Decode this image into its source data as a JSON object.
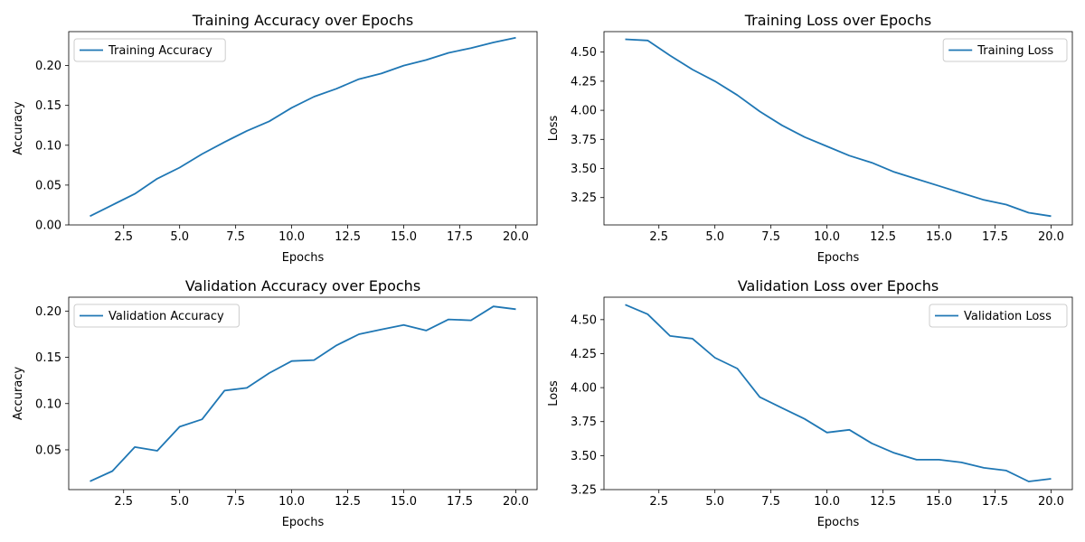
{
  "chart_data": [
    {
      "type": "line",
      "title": "Training Accuracy over Epochs",
      "xlabel": "Epochs",
      "ylabel": "Accuracy",
      "xlim": [
        0.05,
        20.95
      ],
      "ylim": [
        0,
        0.2426
      ],
      "xticks": [
        2.5,
        5.0,
        7.5,
        10.0,
        12.5,
        15.0,
        17.5,
        20.0
      ],
      "yticks": [
        0.0,
        0.05,
        0.1,
        0.15,
        0.2
      ],
      "ytick_decimals": 2,
      "legend_loc": "upper left",
      "line_color": "#1f77b4",
      "grid": false,
      "series": [
        {
          "name": "Training Accuracy",
          "x": [
            1,
            2,
            3,
            4,
            5,
            6,
            7,
            8,
            9,
            10,
            11,
            12,
            13,
            14,
            15,
            16,
            17,
            18,
            19,
            20
          ],
          "y": [
            0.011,
            0.025,
            0.039,
            0.058,
            0.072,
            0.089,
            0.104,
            0.118,
            0.13,
            0.147,
            0.161,
            0.171,
            0.183,
            0.19,
            0.2,
            0.207,
            0.216,
            0.222,
            0.229,
            0.235
          ]
        }
      ]
    },
    {
      "type": "line",
      "title": "Training Loss over Epochs",
      "xlabel": "Epochs",
      "ylabel": "Loss",
      "xlim": [
        0.05,
        20.95
      ],
      "ylim": [
        3.015,
        4.676
      ],
      "xticks": [
        2.5,
        5.0,
        7.5,
        10.0,
        12.5,
        15.0,
        17.5,
        20.0
      ],
      "yticks": [
        3.25,
        3.5,
        3.75,
        4.0,
        4.25,
        4.5
      ],
      "ytick_decimals": 2,
      "legend_loc": "upper right",
      "line_color": "#1f77b4",
      "grid": false,
      "series": [
        {
          "name": "Training Loss",
          "x": [
            1,
            2,
            3,
            4,
            5,
            6,
            7,
            8,
            9,
            10,
            11,
            12,
            13,
            14,
            15,
            16,
            17,
            18,
            19,
            20
          ],
          "y": [
            4.61,
            4.6,
            4.47,
            4.35,
            4.25,
            4.13,
            3.99,
            3.87,
            3.77,
            3.69,
            3.61,
            3.55,
            3.47,
            3.41,
            3.35,
            3.29,
            3.23,
            3.19,
            3.12,
            3.09
          ]
        }
      ]
    },
    {
      "type": "line",
      "title": "Validation Accuracy over Epochs",
      "xlabel": "Epochs",
      "ylabel": "Accuracy",
      "xlim": [
        0.05,
        20.95
      ],
      "ylim": [
        0.007,
        0.215
      ],
      "xticks": [
        2.5,
        5.0,
        7.5,
        10.0,
        12.5,
        15.0,
        17.5,
        20.0
      ],
      "yticks": [
        0.05,
        0.1,
        0.15,
        0.2
      ],
      "ytick_decimals": 2,
      "legend_loc": "upper left",
      "line_color": "#1f77b4",
      "grid": false,
      "series": [
        {
          "name": "Validation Accuracy",
          "x": [
            1,
            2,
            3,
            4,
            5,
            6,
            7,
            8,
            9,
            10,
            11,
            12,
            13,
            14,
            15,
            16,
            17,
            18,
            19,
            20
          ],
          "y": [
            0.016,
            0.027,
            0.053,
            0.049,
            0.075,
            0.083,
            0.114,
            0.117,
            0.133,
            0.146,
            0.147,
            0.163,
            0.175,
            0.18,
            0.185,
            0.179,
            0.191,
            0.19,
            0.205,
            0.202
          ]
        }
      ]
    },
    {
      "type": "line",
      "title": "Validation Loss over Epochs",
      "xlabel": "Epochs",
      "ylabel": "Loss",
      "xlim": [
        0.05,
        20.95
      ],
      "ylim": [
        3.25,
        4.665
      ],
      "xticks": [
        2.5,
        5.0,
        7.5,
        10.0,
        12.5,
        15.0,
        17.5,
        20.0
      ],
      "yticks": [
        3.25,
        3.5,
        3.75,
        4.0,
        4.25,
        4.5
      ],
      "ytick_decimals": 2,
      "legend_loc": "upper right",
      "line_color": "#1f77b4",
      "grid": false,
      "series": [
        {
          "name": "Validation Loss",
          "x": [
            1,
            2,
            3,
            4,
            5,
            6,
            7,
            8,
            9,
            10,
            11,
            12,
            13,
            14,
            15,
            16,
            17,
            18,
            19,
            20
          ],
          "y": [
            4.61,
            4.54,
            4.38,
            4.36,
            4.22,
            4.14,
            3.93,
            3.85,
            3.77,
            3.67,
            3.69,
            3.59,
            3.52,
            3.47,
            3.47,
            3.45,
            3.41,
            3.39,
            3.31,
            3.33
          ]
        }
      ]
    }
  ]
}
